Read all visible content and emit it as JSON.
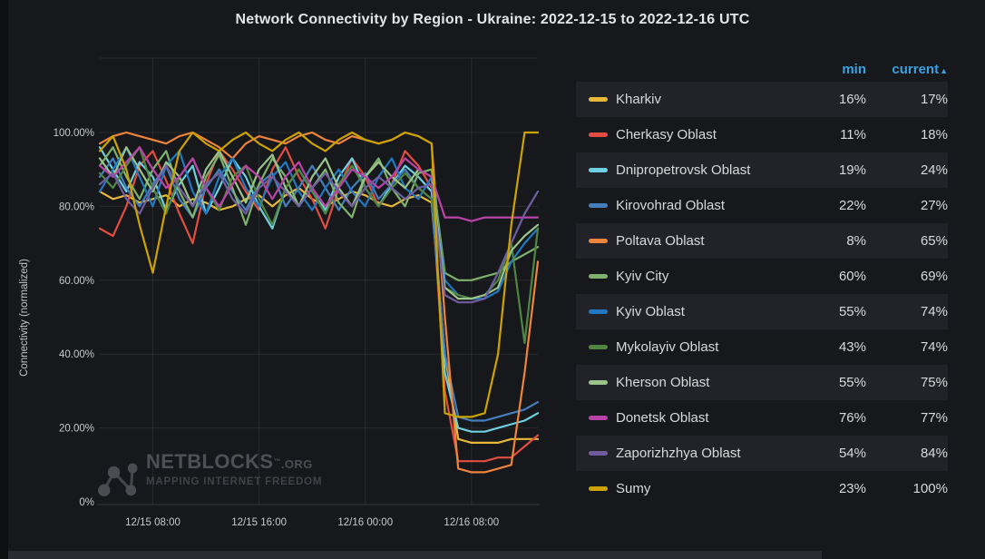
{
  "page": {
    "title": "Network Connectivity by Region - Ukraine: 2022-12-15 to 2022-12-16 UTC"
  },
  "chart": {
    "y_axis_label": "Connectivity (normalized)",
    "y_ticks": [
      {
        "value": 100,
        "label": "100.00%"
      },
      {
        "value": 80,
        "label": "80.00%"
      },
      {
        "value": 60,
        "label": "60.00%"
      },
      {
        "value": 40,
        "label": "40.00%"
      },
      {
        "value": 20,
        "label": "20.00%"
      },
      {
        "value": 0,
        "label": "0%"
      }
    ],
    "x_ticks": [
      {
        "t": 4,
        "label": "12/15 08:00"
      },
      {
        "t": 12,
        "label": "12/15 16:00"
      },
      {
        "t": 20,
        "label": "12/16 00:00"
      },
      {
        "t": 28,
        "label": "12/16 08:00"
      }
    ]
  },
  "chart_data": {
    "type": "line",
    "title": "Network Connectivity by Region - Ukraine: 2022-12-15 to 2022-12-16 UTC",
    "xlabel": "",
    "ylabel": "Connectivity (normalized)",
    "ylim": [
      0,
      120
    ],
    "grid": true,
    "legend_position": "right-table",
    "x_start": "2022-12-15 04:00 UTC",
    "x_step_hours": 1,
    "n_points": 34,
    "series": [
      {
        "name": "Kharkiv",
        "color": "#EAB839",
        "min": 16,
        "current": 17,
        "values": [
          84,
          82,
          83,
          81,
          82,
          83,
          80,
          82,
          81,
          79,
          80,
          82,
          83,
          80,
          83,
          85,
          82,
          80,
          82,
          84,
          83,
          81,
          80,
          82,
          83,
          81,
          40,
          17,
          16,
          16,
          16,
          17,
          17,
          17
        ]
      },
      {
        "name": "Cherkasy Oblast",
        "color": "#E24D42",
        "min": 11,
        "current": 18,
        "values": [
          74,
          72,
          80,
          91,
          95,
          87,
          78,
          70,
          86,
          95,
          90,
          84,
          79,
          90,
          96,
          88,
          82,
          74,
          85,
          93,
          88,
          80,
          86,
          95,
          91,
          85,
          30,
          11,
          11,
          11,
          12,
          12,
          15,
          18
        ]
      },
      {
        "name": "Dnipropetrovsk Oblast",
        "color": "#6ED0E0",
        "min": 19,
        "current": 24,
        "values": [
          96,
          90,
          84,
          92,
          88,
          79,
          86,
          91,
          78,
          85,
          93,
          88,
          80,
          74,
          85,
          90,
          84,
          79,
          88,
          93,
          85,
          80,
          86,
          91,
          88,
          84,
          35,
          20,
          19,
          19,
          20,
          21,
          22,
          24
        ]
      },
      {
        "name": "Kirovohrad Oblast",
        "color": "#447EBC",
        "min": 22,
        "current": 27,
        "values": [
          88,
          93,
          85,
          80,
          86,
          91,
          82,
          77,
          85,
          90,
          84,
          79,
          86,
          89,
          80,
          85,
          91,
          85,
          79,
          85,
          89,
          82,
          86,
          90,
          85,
          82,
          40,
          23,
          22,
          22,
          23,
          24,
          25,
          27
        ]
      },
      {
        "name": "Poltava Oblast",
        "color": "#EF843C",
        "min": 8,
        "current": 65,
        "values": [
          97,
          99,
          100,
          99,
          98,
          97,
          99,
          100,
          98,
          96,
          93,
          97,
          99,
          98,
          97,
          99,
          100,
          98,
          97,
          99,
          98,
          97,
          98,
          100,
          99,
          97,
          50,
          9,
          8,
          8,
          9,
          10,
          35,
          65
        ]
      },
      {
        "name": "Kyiv City",
        "color": "#7EB26D",
        "min": 60,
        "current": 69,
        "values": [
          91,
          96,
          88,
          82,
          90,
          95,
          84,
          77,
          88,
          94,
          85,
          75,
          86,
          93,
          88,
          80,
          85,
          90,
          81,
          77,
          88,
          93,
          85,
          80,
          89,
          90,
          62,
          60,
          60,
          61,
          62,
          65,
          67,
          69
        ]
      },
      {
        "name": "Kyiv Oblast",
        "color": "#1F78C1",
        "min": 55,
        "current": 74,
        "values": [
          84,
          90,
          96,
          88,
          80,
          91,
          95,
          84,
          78,
          88,
          93,
          85,
          80,
          88,
          92,
          84,
          79,
          85,
          90,
          84,
          80,
          88,
          93,
          85,
          82,
          88,
          60,
          56,
          55,
          55,
          57,
          65,
          70,
          74
        ]
      },
      {
        "name": "Mykolayiv Oblast",
        "color": "#508642",
        "min": 43,
        "current": 74,
        "values": [
          89,
          85,
          91,
          96,
          85,
          78,
          88,
          93,
          85,
          79,
          88,
          91,
          82,
          75,
          85,
          90,
          84,
          78,
          86,
          91,
          85,
          80,
          85,
          89,
          85,
          82,
          58,
          56,
          55,
          56,
          60,
          70,
          43,
          74
        ]
      },
      {
        "name": "Kherson Oblast",
        "color": "#9AC48A",
        "min": 55,
        "current": 75,
        "values": [
          93,
          88,
          96,
          90,
          84,
          92,
          88,
          80,
          90,
          95,
          88,
          81,
          90,
          94,
          85,
          80,
          88,
          93,
          85,
          80,
          88,
          92,
          88,
          85,
          90,
          88,
          58,
          55,
          55,
          56,
          58,
          68,
          72,
          75
        ]
      },
      {
        "name": "Donetsk Oblast",
        "color": "#BA43A9",
        "min": 76,
        "current": 77,
        "values": [
          91,
          88,
          92,
          96,
          90,
          85,
          88,
          93,
          85,
          80,
          86,
          91,
          88,
          82,
          88,
          92,
          85,
          80,
          85,
          90,
          88,
          85,
          88,
          93,
          90,
          88,
          77,
          77,
          76,
          77,
          77,
          77,
          77,
          77
        ]
      },
      {
        "name": "Zaporizhzhya Oblast",
        "color": "#705DA0",
        "min": 54,
        "current": 84,
        "values": [
          86,
          89,
          82,
          78,
          85,
          91,
          85,
          80,
          86,
          89,
          82,
          78,
          85,
          88,
          84,
          80,
          85,
          89,
          84,
          80,
          85,
          88,
          85,
          82,
          85,
          86,
          56,
          54,
          54,
          55,
          62,
          70,
          78,
          84
        ]
      },
      {
        "name": "Sumy",
        "color": "#CCA300",
        "min": 23,
        "current": 100,
        "values": [
          95,
          99,
          90,
          75,
          62,
          80,
          95,
          100,
          97,
          95,
          98,
          100,
          97,
          95,
          98,
          100,
          97,
          95,
          98,
          100,
          98,
          97,
          98,
          100,
          99,
          97,
          24,
          23,
          23,
          24,
          40,
          75,
          100,
          100
        ]
      }
    ]
  },
  "legend": {
    "headers": {
      "min": "min",
      "current": "current",
      "sort_arrow": "▲"
    },
    "rows": [
      {
        "label": "Kharkiv",
        "min": "16%",
        "current": "17%",
        "color": "#EAB839"
      },
      {
        "label": "Cherkasy Oblast",
        "min": "11%",
        "current": "18%",
        "color": "#E24D42"
      },
      {
        "label": "Dnipropetrovsk Oblast",
        "min": "19%",
        "current": "24%",
        "color": "#6ED0E0"
      },
      {
        "label": "Kirovohrad Oblast",
        "min": "22%",
        "current": "27%",
        "color": "#447EBC"
      },
      {
        "label": "Poltava Oblast",
        "min": "8%",
        "current": "65%",
        "color": "#EF843C"
      },
      {
        "label": "Kyiv City",
        "min": "60%",
        "current": "69%",
        "color": "#7EB26D"
      },
      {
        "label": "Kyiv Oblast",
        "min": "55%",
        "current": "74%",
        "color": "#1F78C1"
      },
      {
        "label": "Mykolayiv Oblast",
        "min": "43%",
        "current": "74%",
        "color": "#508642"
      },
      {
        "label": "Kherson Oblast",
        "min": "55%",
        "current": "75%",
        "color": "#9AC48A"
      },
      {
        "label": "Donetsk Oblast",
        "min": "76%",
        "current": "77%",
        "color": "#BA43A9"
      },
      {
        "label": "Zaporizhzhya Oblast",
        "min": "54%",
        "current": "84%",
        "color": "#705DA0"
      },
      {
        "label": "Sumy",
        "min": "23%",
        "current": "100%",
        "color": "#CCA300"
      }
    ]
  },
  "watermark": {
    "brand": "NETBLOCKS",
    "tm": "™",
    "suffix": ".ORG",
    "tagline": "MAPPING INTERNET FREEDOM"
  },
  "colors": {
    "background": "#17181b",
    "row_alt": "#212328",
    "header_blue": "#3aa1e0",
    "text": "#d8d9da",
    "grid": "rgba(204,204,220,0.10)"
  }
}
